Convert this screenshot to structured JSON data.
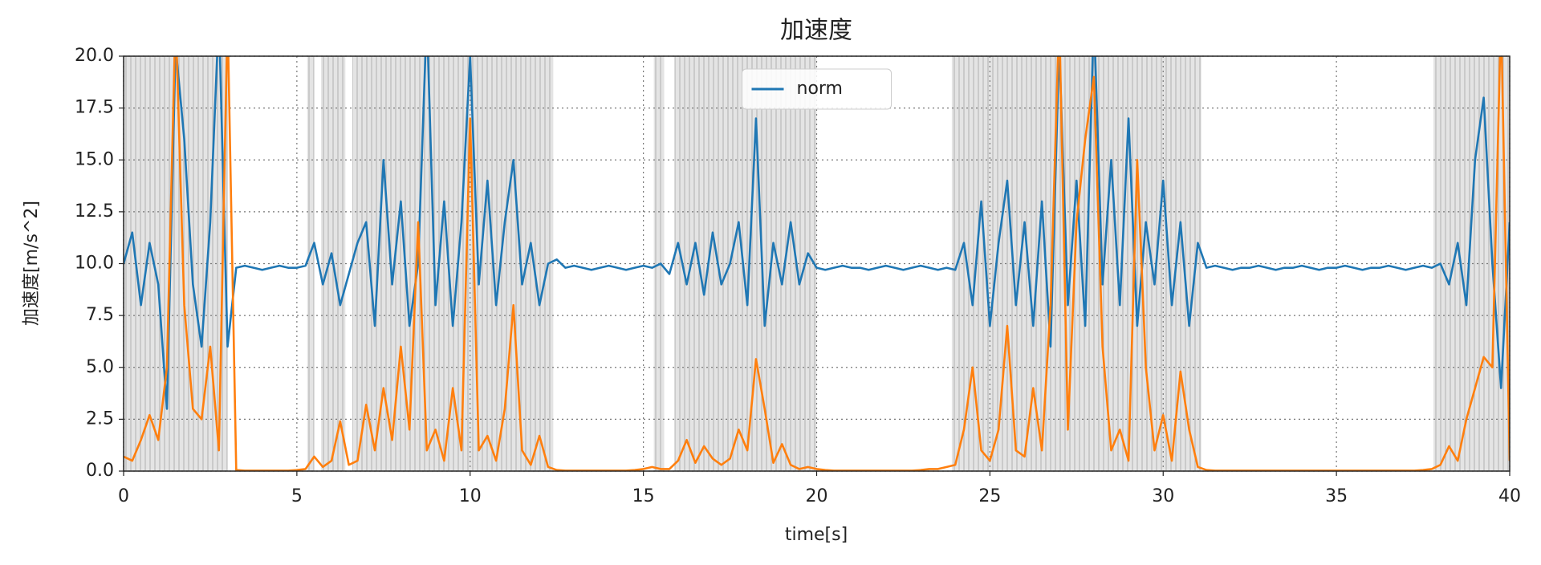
{
  "chart_data": {
    "type": "line",
    "title": "加速度",
    "x_label": "time[s]",
    "y_label": "加速度[m/s^2]",
    "x": [
      0,
      0.25,
      0.5,
      0.75,
      1,
      1.25,
      1.5,
      1.75,
      2,
      2.25,
      2.5,
      2.75,
      3,
      3.25,
      3.5,
      3.75,
      4,
      4.25,
      4.5,
      4.75,
      5,
      5.25,
      5.5,
      5.75,
      6,
      6.25,
      6.5,
      6.75,
      7,
      7.25,
      7.5,
      7.75,
      8,
      8.25,
      8.5,
      8.75,
      9,
      9.25,
      9.5,
      9.75,
      10,
      10.25,
      10.5,
      10.75,
      11,
      11.25,
      11.5,
      11.75,
      12,
      12.25,
      12.5,
      12.75,
      13,
      13.25,
      13.5,
      13.75,
      14,
      14.25,
      14.5,
      14.75,
      15,
      15.25,
      15.5,
      15.75,
      16,
      16.25,
      16.5,
      16.75,
      17,
      17.25,
      17.5,
      17.75,
      18,
      18.25,
      18.5,
      18.75,
      19,
      19.25,
      19.5,
      19.75,
      20,
      20.25,
      20.5,
      20.75,
      21,
      21.25,
      21.5,
      21.75,
      22,
      22.25,
      22.5,
      22.75,
      23,
      23.25,
      23.5,
      23.75,
      24,
      24.25,
      24.5,
      24.75,
      25,
      25.25,
      25.5,
      25.75,
      26,
      26.25,
      26.5,
      26.75,
      27,
      27.25,
      27.5,
      27.75,
      28,
      28.25,
      28.5,
      28.75,
      29,
      29.25,
      29.5,
      29.75,
      30,
      30.25,
      30.5,
      30.75,
      31,
      31.25,
      31.5,
      31.75,
      32,
      32.25,
      32.5,
      32.75,
      33,
      33.25,
      33.5,
      33.75,
      34,
      34.25,
      34.5,
      34.75,
      35,
      35.25,
      35.5,
      35.75,
      36,
      36.25,
      36.5,
      36.75,
      37,
      37.25,
      37.5,
      37.75,
      38,
      38.25,
      38.5,
      38.75,
      39,
      39.25,
      39.5,
      39.75,
      40
    ],
    "series": [
      {
        "name": "norm",
        "color": "#1f77b4",
        "values": [
          10,
          11.5,
          8,
          11,
          9,
          3,
          20.5,
          16,
          9,
          6,
          12,
          22,
          6,
          9.8,
          9.9,
          9.8,
          9.7,
          9.8,
          9.9,
          9.8,
          9.8,
          9.9,
          11,
          9,
          10.5,
          8,
          9.5,
          11,
          12,
          7,
          15,
          9,
          13,
          7,
          10,
          22,
          8,
          13,
          7,
          12,
          20,
          9,
          14,
          8,
          12,
          15,
          9,
          11,
          8,
          10,
          10.2,
          9.8,
          9.9,
          9.8,
          9.7,
          9.8,
          9.9,
          9.8,
          9.7,
          9.8,
          9.9,
          9.8,
          10,
          9.5,
          11,
          9,
          11,
          8.5,
          11.5,
          9,
          10,
          12,
          8,
          17,
          7,
          11,
          9,
          12,
          9,
          10.5,
          9.8,
          9.7,
          9.8,
          9.9,
          9.8,
          9.8,
          9.7,
          9.8,
          9.9,
          9.8,
          9.7,
          9.8,
          9.9,
          9.8,
          9.7,
          9.8,
          9.7,
          11,
          8,
          13,
          7,
          11,
          14,
          8,
          12,
          7,
          13,
          6,
          20.5,
          8,
          14,
          7,
          22,
          9,
          15,
          8,
          17,
          7,
          12,
          9,
          14,
          8,
          12,
          7,
          11,
          9.8,
          9.9,
          9.8,
          9.7,
          9.8,
          9.8,
          9.9,
          9.8,
          9.7,
          9.8,
          9.8,
          9.9,
          9.8,
          9.7,
          9.8,
          9.8,
          9.9,
          9.8,
          9.7,
          9.8,
          9.8,
          9.9,
          9.8,
          9.7,
          9.8,
          9.9,
          9.8,
          10,
          9,
          11,
          8,
          15,
          18,
          10,
          4,
          12
        ]
      },
      {
        "color": "#ff7f0e",
        "values": [
          0.7,
          0.5,
          1.5,
          2.7,
          1.5,
          5,
          22,
          8,
          3,
          2.5,
          6,
          1,
          22,
          0.05,
          0.02,
          0.02,
          0.02,
          0.02,
          0.02,
          0.02,
          0.05,
          0.1,
          0.7,
          0.2,
          0.5,
          2.4,
          0.3,
          0.5,
          3.2,
          1,
          4,
          1.5,
          6,
          2,
          12,
          1,
          2,
          0.5,
          4,
          1,
          17,
          1,
          1.7,
          0.5,
          3,
          8,
          1,
          0.3,
          1.7,
          0.2,
          0.05,
          0.02,
          0.02,
          0.02,
          0.02,
          0.02,
          0.02,
          0.02,
          0.02,
          0.05,
          0.1,
          0.2,
          0.1,
          0.1,
          0.5,
          1.5,
          0.4,
          1.2,
          0.6,
          0.3,
          0.6,
          2,
          1,
          5.4,
          3,
          0.4,
          1.3,
          0.3,
          0.1,
          0.2,
          0.1,
          0.05,
          0.02,
          0.02,
          0.02,
          0.02,
          0.02,
          0.02,
          0.02,
          0.02,
          0.02,
          0.02,
          0.05,
          0.1,
          0.1,
          0.2,
          0.3,
          2,
          5,
          1,
          0.5,
          2,
          7,
          1,
          0.7,
          4,
          1,
          8,
          22,
          2,
          12,
          16,
          19,
          6,
          1,
          2,
          0.5,
          15,
          5,
          1,
          2.7,
          0.5,
          4.8,
          2,
          0.2,
          0.05,
          0.02,
          0.02,
          0.02,
          0.02,
          0.02,
          0.02,
          0.02,
          0.02,
          0.02,
          0.02,
          0.02,
          0.02,
          0.02,
          0.02,
          0.02,
          0.02,
          0.02,
          0.02,
          0.02,
          0.02,
          0.02,
          0.02,
          0.02,
          0.02,
          0.05,
          0.1,
          0.3,
          1.2,
          0.5,
          2.5,
          4,
          5.5,
          5,
          22,
          0.5
        ]
      }
    ],
    "spans": [
      [
        0,
        3
      ],
      [
        5.3,
        5.5
      ],
      [
        5.7,
        6.4
      ],
      [
        6.6,
        12.4
      ],
      [
        15.3,
        15.6
      ],
      [
        15.9,
        20
      ],
      [
        23.9,
        31.1
      ],
      [
        37.8,
        40
      ]
    ],
    "xlim": [
      0,
      40
    ],
    "xticks": [
      0,
      5,
      10,
      15,
      20,
      25,
      30,
      35,
      40
    ],
    "ylim": [
      0,
      20
    ],
    "yticks": [
      {
        "value": 0,
        "label": "0.0"
      },
      2.5,
      {
        "value": 5,
        "label": "5.0"
      },
      7.5,
      {
        "value": 10,
        "label": "10.0"
      },
      12.5,
      {
        "value": 15,
        "label": "15.0"
      },
      17.5,
      {
        "value": 20,
        "label": "20.0"
      }
    ],
    "grid": true,
    "legend": "upper center"
  }
}
